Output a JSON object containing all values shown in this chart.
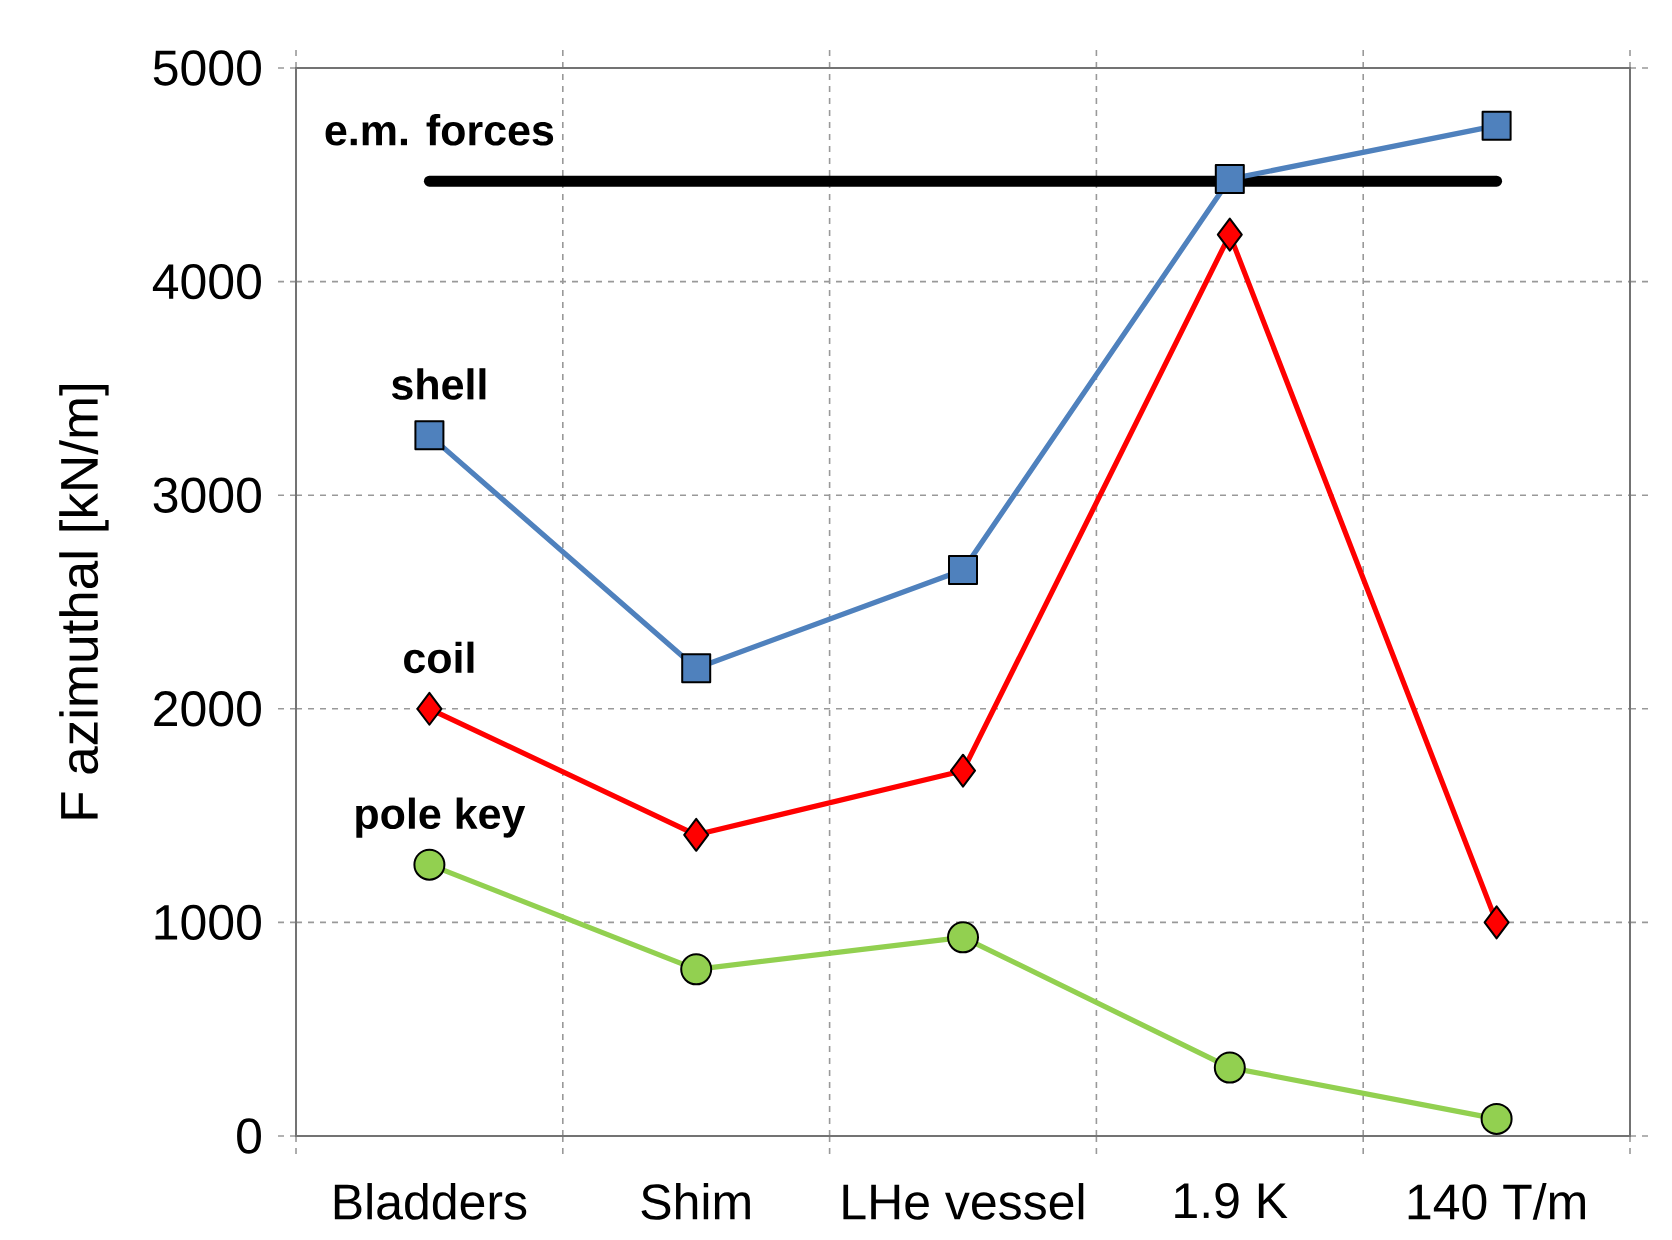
{
  "chart_data": {
    "type": "line",
    "ylabel": "F azimuthal [kN/m]",
    "categories": [
      "Bladders",
      "Shim",
      "LHe vessel",
      "1.9 K",
      "140 T/m"
    ],
    "series": [
      {
        "name": "e.m. forces",
        "color": "#000000",
        "marker": "none",
        "values": [
          4470,
          4470,
          4470,
          4470,
          4470
        ]
      },
      {
        "name": "shell",
        "color": "#4f81bd",
        "marker": "square",
        "values": [
          3280,
          2190,
          2650,
          4480,
          4730
        ]
      },
      {
        "name": "coil",
        "color": "#ff0000",
        "marker": "diamond",
        "values": [
          2000,
          1410,
          1710,
          4220,
          1000
        ]
      },
      {
        "name": "pole key",
        "color": "#92d050",
        "marker": "circle",
        "values": [
          1270,
          780,
          930,
          320,
          80
        ]
      }
    ],
    "ylim": [
      0,
      5000
    ],
    "yticks": [
      0,
      1000,
      2000,
      3000,
      4000,
      5000
    ],
    "grid": true
  }
}
